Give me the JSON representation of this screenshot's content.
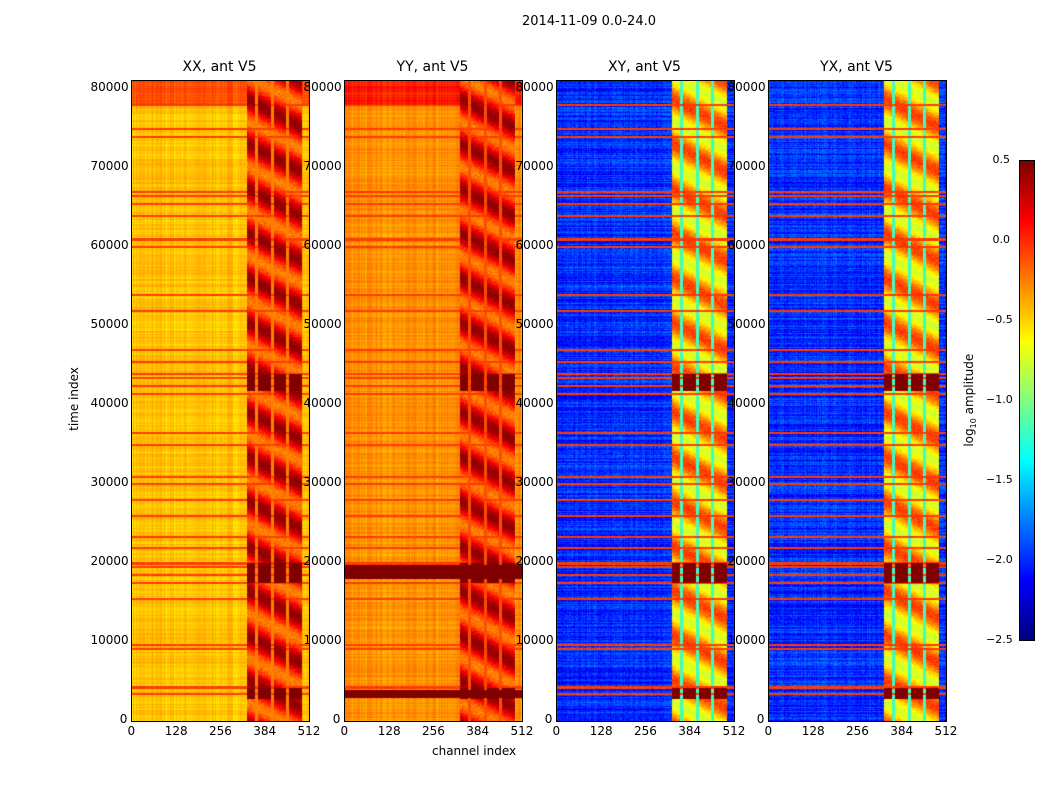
{
  "chart_data": {
    "type": "heatmap",
    "title": "2014-11-09 0.0-24.0",
    "xlabel": "channel index",
    "ylabel": "time index",
    "colorbar_label": "log10 amplitude",
    "colorbar_range": [
      -2.5,
      0.5
    ],
    "colorbar_ticks": [
      "0.5",
      "0.0",
      "−0.5",
      "−1.0",
      "−1.5",
      "−2.0",
      "−2.5"
    ],
    "colormap": "jet",
    "xlim": [
      0,
      512
    ],
    "ylim": [
      0,
      81000
    ],
    "xticks": [
      "0",
      "128",
      "256",
      "384",
      "512"
    ],
    "yticks": [
      "0",
      "10000",
      "20000",
      "30000",
      "40000",
      "50000",
      "60000",
      "70000",
      "80000"
    ],
    "panels": [
      {
        "title": "XX, ant V5",
        "base_level": -0.45,
        "strip_level": 0.1
      },
      {
        "title": "YY, ant V5",
        "base_level": -0.3,
        "strip_level": 0.1
      },
      {
        "title": "XY, ant V5",
        "base_level": -2.0,
        "strip_level": -0.4
      },
      {
        "title": "YX, ant V5",
        "base_level": -2.0,
        "strip_level": -0.4
      }
    ],
    "strong_channel_range": [
      330,
      490
    ],
    "rfi_time_rows": [
      3500,
      4300,
      9200,
      9700,
      15500,
      17500,
      18500,
      19500,
      20000,
      22000,
      23300,
      26000,
      28000,
      30000,
      31000,
      35000,
      36500,
      41500,
      42500,
      43500,
      44000,
      45500,
      47000,
      52000,
      54000,
      60000,
      61000,
      64000,
      65500,
      66500,
      67000,
      74000,
      75000,
      78000
    ]
  }
}
